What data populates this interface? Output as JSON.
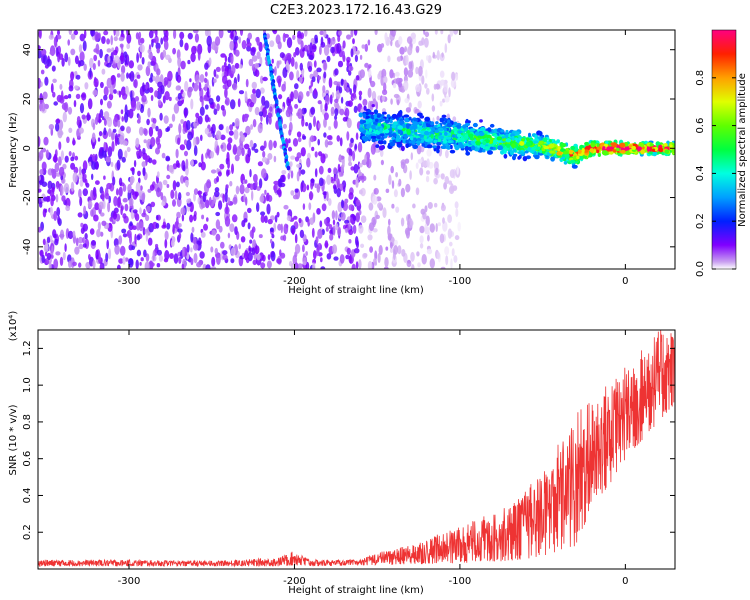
{
  "title": "C2E3.2023.172.16.43.G29",
  "chart_data": [
    {
      "type": "heatmap",
      "xlabel": "Height of straight line (km)",
      "ylabel": "Frequency (Hz)",
      "xlim": [
        -355,
        30
      ],
      "ylim": [
        -49,
        48
      ],
      "xticks": [
        -300,
        -200,
        -100,
        0
      ],
      "yticks": [
        -40,
        -20,
        0,
        20,
        40
      ],
      "colormap": "rainbow (purple to red)",
      "colorbar": {
        "label": "Normalized spectral amplitude",
        "range": [
          0.0,
          1.0
        ],
        "ticks": [
          "0.0",
          "0.2",
          "0.4",
          "0.6",
          "0.8"
        ]
      },
      "features": [
        {
          "kind": "noise",
          "x_range": [
            -355,
            -160
          ],
          "y_range": [
            -49,
            48
          ],
          "level": 0.1
        },
        {
          "kind": "faint-noise",
          "x_range": [
            -160,
            -100
          ],
          "y_range": [
            -49,
            48
          ],
          "level": 0.05
        },
        {
          "kind": "streak",
          "from": [
            -218,
            46
          ],
          "to": [
            -204,
            -8
          ],
          "level": 0.25
        },
        {
          "kind": "signal-band",
          "track": [
            [
              -160,
              9
            ],
            [
              -130,
              7
            ],
            [
              -100,
              5
            ],
            [
              -70,
              2
            ],
            [
              -50,
              1
            ],
            [
              -30,
              -3
            ],
            [
              -20,
              0
            ],
            [
              0,
              0
            ],
            [
              30,
              0
            ]
          ],
          "width": [
            [
              -160,
              10
            ],
            [
              -100,
              9
            ],
            [
              -50,
              6
            ],
            [
              -30,
              5
            ],
            [
              0,
              3
            ],
            [
              30,
              3
            ]
          ],
          "level": [
            [
              -160,
              0.35
            ],
            [
              -100,
              0.4
            ],
            [
              -50,
              0.55
            ],
            [
              -20,
              0.85
            ],
            [
              0,
              0.9
            ],
            [
              30,
              0.8
            ]
          ]
        }
      ]
    },
    {
      "type": "line",
      "xlabel": "Height of straight line (km)",
      "ylabel": "SNR (10 * v/v)",
      "multiplier": "(x10⁴)",
      "xlim": [
        -355,
        30
      ],
      "ylim": [
        0,
        13000
      ],
      "xticks": [
        -300,
        -200,
        -100,
        0
      ],
      "yticks": [
        2000,
        4000,
        6000,
        8000,
        10000,
        12000
      ],
      "ytick_labels": [
        "0.2",
        "0.4",
        "0.6",
        "0.8",
        "1.0",
        "1.2"
      ],
      "color": "#ee3333",
      "envelope": [
        [
          -355,
          150,
          500
        ],
        [
          -300,
          150,
          500
        ],
        [
          -250,
          150,
          450
        ],
        [
          -210,
          150,
          600
        ],
        [
          -200,
          200,
          1000
        ],
        [
          -190,
          150,
          500
        ],
        [
          -160,
          200,
          500
        ],
        [
          -150,
          200,
          900
        ],
        [
          -130,
          250,
          1300
        ],
        [
          -110,
          300,
          2000
        ],
        [
          -90,
          350,
          2700
        ],
        [
          -70,
          450,
          3500
        ],
        [
          -60,
          550,
          4300
        ],
        [
          -50,
          700,
          5500
        ],
        [
          -40,
          1000,
          7000
        ],
        [
          -30,
          1200,
          8300
        ],
        [
          -27,
          1800,
          9000
        ],
        [
          -20,
          3500,
          9200
        ],
        [
          -10,
          4500,
          10200
        ],
        [
          0,
          6000,
          11000
        ],
        [
          10,
          7000,
          12000
        ],
        [
          20,
          8000,
          13000
        ],
        [
          30,
          9000,
          13000
        ]
      ]
    }
  ]
}
